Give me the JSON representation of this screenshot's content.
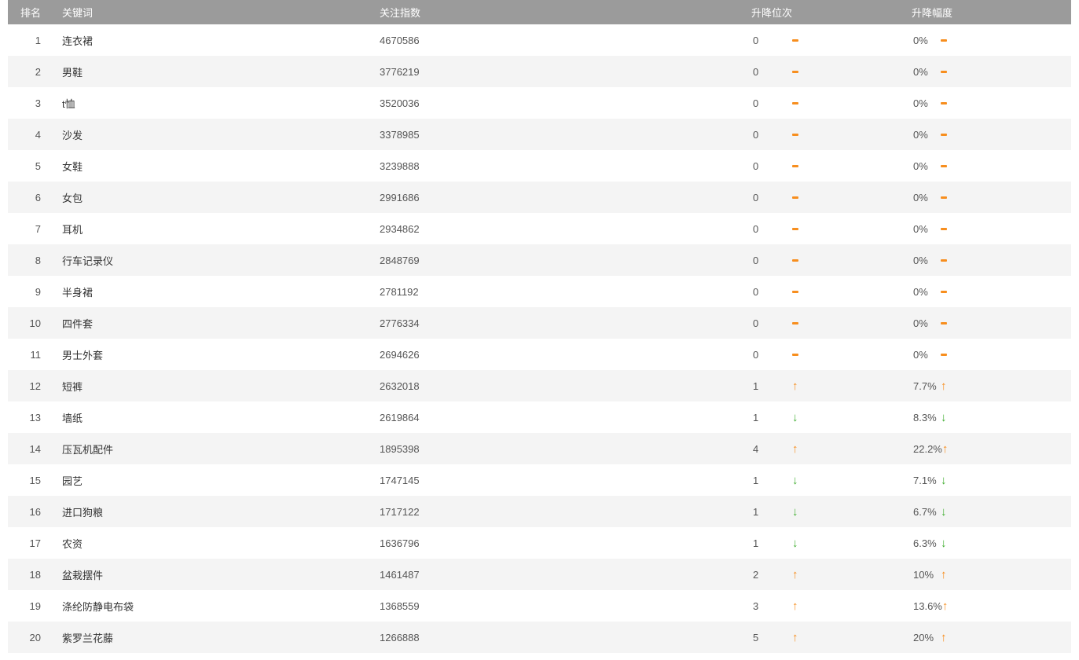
{
  "table": {
    "columns": {
      "rank": "排名",
      "keyword": "关键词",
      "index": "关注指数",
      "pos_change": "升降位次",
      "pct_change": "升降幅度"
    },
    "rows": [
      {
        "rank": "1",
        "keyword": "连衣裙",
        "index": "4670586",
        "pos": "0",
        "pos_dir": "flat",
        "pct": "0%",
        "pct_dir": "flat"
      },
      {
        "rank": "2",
        "keyword": "男鞋",
        "index": "3776219",
        "pos": "0",
        "pos_dir": "flat",
        "pct": "0%",
        "pct_dir": "flat"
      },
      {
        "rank": "3",
        "keyword": "t恤",
        "index": "3520036",
        "pos": "0",
        "pos_dir": "flat",
        "pct": "0%",
        "pct_dir": "flat"
      },
      {
        "rank": "4",
        "keyword": "沙发",
        "index": "3378985",
        "pos": "0",
        "pos_dir": "flat",
        "pct": "0%",
        "pct_dir": "flat"
      },
      {
        "rank": "5",
        "keyword": "女鞋",
        "index": "3239888",
        "pos": "0",
        "pos_dir": "flat",
        "pct": "0%",
        "pct_dir": "flat"
      },
      {
        "rank": "6",
        "keyword": "女包",
        "index": "2991686",
        "pos": "0",
        "pos_dir": "flat",
        "pct": "0%",
        "pct_dir": "flat"
      },
      {
        "rank": "7",
        "keyword": "耳机",
        "index": "2934862",
        "pos": "0",
        "pos_dir": "flat",
        "pct": "0%",
        "pct_dir": "flat"
      },
      {
        "rank": "8",
        "keyword": "行车记录仪",
        "index": "2848769",
        "pos": "0",
        "pos_dir": "flat",
        "pct": "0%",
        "pct_dir": "flat"
      },
      {
        "rank": "9",
        "keyword": "半身裙",
        "index": "2781192",
        "pos": "0",
        "pos_dir": "flat",
        "pct": "0%",
        "pct_dir": "flat"
      },
      {
        "rank": "10",
        "keyword": "四件套",
        "index": "2776334",
        "pos": "0",
        "pos_dir": "flat",
        "pct": "0%",
        "pct_dir": "flat"
      },
      {
        "rank": "11",
        "keyword": "男士外套",
        "index": "2694626",
        "pos": "0",
        "pos_dir": "flat",
        "pct": "0%",
        "pct_dir": "flat"
      },
      {
        "rank": "12",
        "keyword": "短裤",
        "index": "2632018",
        "pos": "1",
        "pos_dir": "up",
        "pct": "7.7%",
        "pct_dir": "up"
      },
      {
        "rank": "13",
        "keyword": "墙纸",
        "index": "2619864",
        "pos": "1",
        "pos_dir": "down",
        "pct": "8.3%",
        "pct_dir": "down"
      },
      {
        "rank": "14",
        "keyword": "压瓦机配件",
        "index": "1895398",
        "pos": "4",
        "pos_dir": "up",
        "pct": "22.2%",
        "pct_dir": "up"
      },
      {
        "rank": "15",
        "keyword": "园艺",
        "index": "1747145",
        "pos": "1",
        "pos_dir": "down",
        "pct": "7.1%",
        "pct_dir": "down"
      },
      {
        "rank": "16",
        "keyword": "进口狗粮",
        "index": "1717122",
        "pos": "1",
        "pos_dir": "down",
        "pct": "6.7%",
        "pct_dir": "down"
      },
      {
        "rank": "17",
        "keyword": "农资",
        "index": "1636796",
        "pos": "1",
        "pos_dir": "down",
        "pct": "6.3%",
        "pct_dir": "down"
      },
      {
        "rank": "18",
        "keyword": "盆栽摆件",
        "index": "1461487",
        "pos": "2",
        "pos_dir": "up",
        "pct": "10%",
        "pct_dir": "up"
      },
      {
        "rank": "19",
        "keyword": "涤纶防静电布袋",
        "index": "1368559",
        "pos": "3",
        "pos_dir": "up",
        "pct": "13.6%",
        "pct_dir": "up"
      },
      {
        "rank": "20",
        "keyword": "紫罗兰花藤",
        "index": "1266888",
        "pos": "5",
        "pos_dir": "up",
        "pct": "20%",
        "pct_dir": "up"
      }
    ]
  },
  "colors": {
    "header_bg": "#9b9b9b",
    "row_alt_bg": "#f4f4f4",
    "up_orange": "#f78e1e",
    "down_green": "#45b035"
  }
}
